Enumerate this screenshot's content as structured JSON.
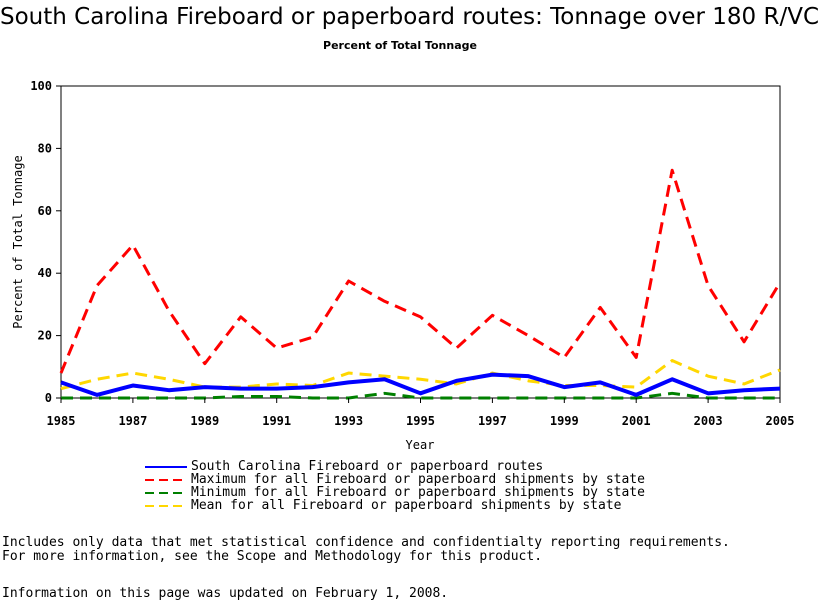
{
  "chart_data": {
    "type": "line",
    "title": "South Carolina Fireboard or paperboard routes: Tonnage over 180 R/VC",
    "subtitle": "Percent of Total Tonnage",
    "xlabel": "Year",
    "ylabel": "Percent of Total Tonnage",
    "ylim": [
      0,
      100
    ],
    "xlim": [
      1985,
      2005
    ],
    "x_ticks": [
      "1985",
      "1987",
      "1989",
      "1991",
      "1993",
      "1995",
      "1997",
      "1999",
      "2001",
      "2003",
      "2005"
    ],
    "y_ticks": [
      "0",
      "20",
      "40",
      "60",
      "80",
      "100"
    ],
    "grid": false,
    "legend_position": "bottom",
    "x": [
      1985,
      1986,
      1987,
      1988,
      1989,
      1990,
      1991,
      1992,
      1993,
      1994,
      1995,
      1996,
      1997,
      1998,
      1999,
      2000,
      2001,
      2002,
      2003,
      2004,
      2005
    ],
    "series": [
      {
        "name": "South Carolina Fireboard or paperboard routes",
        "color": "#0000ff",
        "style": "solid",
        "values": [
          5,
          1,
          4,
          2.5,
          3.5,
          3,
          3,
          3.5,
          5,
          6,
          1.5,
          5.5,
          7.5,
          7,
          3.5,
          5,
          1,
          6,
          1.5,
          2.5,
          3
        ]
      },
      {
        "name": "Maximum for all Fireboard or paperboard shipments by state",
        "color": "#ff0000",
        "style": "dashed",
        "values": [
          8,
          36,
          49,
          28,
          11,
          26,
          16,
          19.5,
          37.5,
          31,
          26,
          16,
          26.5,
          20,
          13,
          29,
          13,
          73,
          36,
          18,
          37
        ]
      },
      {
        "name": "Minimum for all Fireboard or paperboard shipments by state",
        "color": "#008000",
        "style": "dashed",
        "values": [
          0,
          0,
          0,
          0,
          0,
          0.5,
          0.5,
          0,
          0,
          1.5,
          0,
          0,
          0,
          0,
          0,
          0,
          0,
          1.5,
          0,
          0,
          0
        ]
      },
      {
        "name": "Mean for all Fireboard or paperboard shipments by state",
        "color": "#ffd700",
        "style": "dashed",
        "values": [
          3,
          6,
          8,
          6,
          3.5,
          3.5,
          4.5,
          4,
          8,
          7,
          6,
          4.5,
          8,
          5.5,
          4,
          4,
          3.5,
          12,
          7,
          4.5,
          9
        ]
      }
    ]
  },
  "notes": [
    "Includes only data that met statistical confidence and confidentialty reporting requirements.",
    "For more information, see the Scope and Methodology for this product."
  ],
  "updated": "Information on this page was updated on February 1, 2008."
}
